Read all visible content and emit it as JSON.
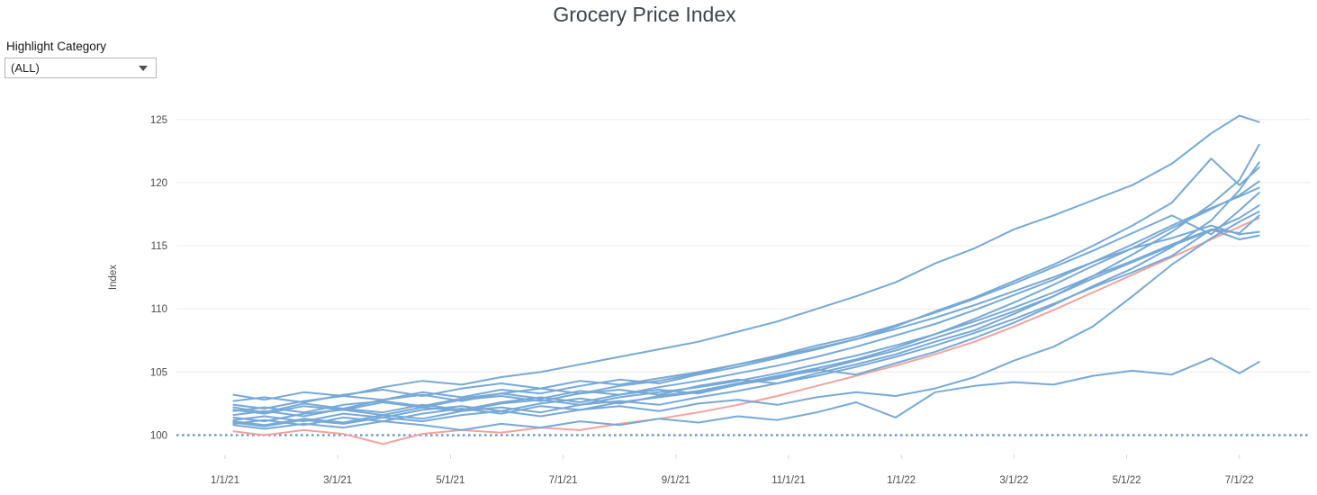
{
  "controls": {
    "label": "Highlight Category",
    "value": "(ALL)"
  },
  "chart_data": {
    "type": "line",
    "title": "Grocery Price Index",
    "xlabel": "",
    "ylabel": "Index",
    "grid": "horizontal",
    "legend": "none",
    "ylim": [
      99,
      126.5
    ],
    "y_ticks": [
      100,
      105,
      110,
      115,
      120,
      125
    ],
    "x_ticks": [
      {
        "label": "1/1/21",
        "month": 0
      },
      {
        "label": "3/1/21",
        "month": 2
      },
      {
        "label": "5/1/21",
        "month": 4
      },
      {
        "label": "7/1/21",
        "month": 6
      },
      {
        "label": "9/1/21",
        "month": 8
      },
      {
        "label": "11/1/21",
        "month": 10
      },
      {
        "label": "1/1/22",
        "month": 12
      },
      {
        "label": "3/1/22",
        "month": 14
      },
      {
        "label": "5/1/22",
        "month": 16
      },
      {
        "label": "7/1/22",
        "month": 18
      }
    ],
    "reference_line": {
      "value": 100,
      "style": "dotted",
      "color": "#6C9BD2"
    },
    "line_color": "#76A9D6",
    "highlight_color": "#F2A29B",
    "x_unit": "months since 1/1/21, weekly data",
    "x": [
      0.15,
      0.7,
      1.4,
      2.1,
      2.8,
      3.5,
      4.2,
      4.9,
      5.6,
      6.3,
      7.0,
      7.7,
      8.4,
      9.1,
      9.8,
      10.5,
      11.2,
      11.9,
      12.6,
      13.3,
      14.0,
      14.7,
      15.4,
      16.1,
      16.8,
      17.5,
      18.0,
      18.35
    ],
    "series": [
      {
        "name": "series-01",
        "color": "#F2A29B",
        "values": [
          100.3,
          100.0,
          100.4,
          100.1,
          99.3,
          100.1,
          100.4,
          100.2,
          100.6,
          100.4,
          100.9,
          101.3,
          101.8,
          102.4,
          103.1,
          103.9,
          104.7,
          105.5,
          106.4,
          107.4,
          108.6,
          109.9,
          111.3,
          112.7,
          114.1,
          115.5,
          116.5,
          117.2
        ]
      },
      {
        "name": "series-02",
        "color": "#76A9D6",
        "values": [
          100.8,
          100.5,
          100.9,
          100.6,
          101.1,
          100.8,
          100.4,
          100.9,
          100.6,
          101.1,
          100.8,
          101.3,
          101.0,
          101.5,
          101.2,
          101.8,
          102.6,
          101.4,
          103.4,
          103.9,
          104.2,
          104.0,
          104.7,
          105.1,
          104.8,
          106.1,
          104.9,
          105.8
        ]
      },
      {
        "name": "series-03",
        "color": "#76A9D6",
        "values": [
          101.0,
          100.7,
          101.2,
          100.9,
          101.4,
          101.1,
          101.6,
          101.9,
          101.5,
          102.0,
          102.3,
          101.9,
          102.5,
          102.8,
          102.4,
          103.0,
          103.4,
          103.1,
          103.7,
          104.6,
          105.9,
          107.0,
          108.6,
          111.0,
          113.5,
          115.6,
          116.9,
          117.7
        ]
      },
      {
        "name": "series-04",
        "color": "#76A9D6",
        "values": [
          101.1,
          100.8,
          101.3,
          101.0,
          101.6,
          101.3,
          101.9,
          102.2,
          101.8,
          102.4,
          102.7,
          102.4,
          103.0,
          103.5,
          104.1,
          104.7,
          105.4,
          106.2,
          107.1,
          108.1,
          109.2,
          110.4,
          111.7,
          112.9,
          114.2,
          116.3,
          115.5,
          115.8
        ]
      },
      {
        "name": "series-05",
        "color": "#76A9D6",
        "values": [
          102.7,
          103.0,
          102.6,
          103.2,
          103.6,
          103.1,
          103.7,
          104.1,
          103.7,
          104.3,
          104.0,
          104.5,
          105.0,
          105.6,
          106.2,
          106.9,
          107.6,
          108.4,
          109.3,
          110.3,
          111.4,
          112.5,
          113.7,
          114.8,
          115.6,
          116.6,
          115.9,
          116.1
        ]
      },
      {
        "name": "series-06",
        "color": "#76A9D6",
        "values": [
          101.4,
          101.1,
          101.7,
          102.0,
          101.6,
          102.2,
          101.9,
          102.5,
          102.8,
          102.4,
          103.0,
          103.4,
          103.8,
          104.3,
          104.9,
          105.6,
          106.3,
          107.1,
          108.0,
          109.0,
          110.1,
          111.3,
          112.6,
          113.8,
          115.1,
          116.3,
          116.0,
          117.4
        ]
      },
      {
        "name": "series-07",
        "color": "#76A9D6",
        "values": [
          100.9,
          101.2,
          100.8,
          101.4,
          101.1,
          101.7,
          102.1,
          101.7,
          102.3,
          102.0,
          102.6,
          103.0,
          103.4,
          104.0,
          104.6,
          105.1,
          105.9,
          106.7,
          107.7,
          108.7,
          109.8,
          111.0,
          112.4,
          113.7,
          115.0,
          116.2,
          117.2,
          118.2
        ]
      },
      {
        "name": "series-08",
        "color": "#76A9D6",
        "values": [
          102.2,
          101.8,
          102.5,
          102.1,
          102.8,
          103.2,
          102.7,
          103.3,
          103.7,
          103.3,
          103.9,
          104.3,
          104.9,
          105.6,
          106.3,
          107.1,
          107.8,
          108.7,
          109.7,
          110.8,
          112.0,
          113.3,
          114.6,
          116.0,
          117.4,
          115.9,
          117.8,
          119.2
        ]
      },
      {
        "name": "series-09",
        "color": "#76A9D6",
        "values": [
          101.9,
          102.2,
          101.8,
          102.4,
          102.7,
          102.3,
          102.9,
          103.3,
          102.9,
          103.5,
          103.2,
          103.8,
          104.3,
          104.9,
          105.5,
          106.2,
          107.0,
          107.9,
          108.8,
          109.9,
          111.1,
          112.3,
          113.7,
          115.1,
          116.6,
          118.0,
          118.9,
          119.6
        ]
      },
      {
        "name": "series-10",
        "color": "#76A9D6",
        "values": [
          101.2,
          101.5,
          101.1,
          101.7,
          101.4,
          102.0,
          102.3,
          101.9,
          102.5,
          102.9,
          102.5,
          103.1,
          103.5,
          104.1,
          104.7,
          105.3,
          106.0,
          106.9,
          108.0,
          109.2,
          110.5,
          111.9,
          113.4,
          114.8,
          116.4,
          117.9,
          119.0,
          120.1
        ]
      },
      {
        "name": "series-11",
        "color": "#76A9D6",
        "values": [
          102.4,
          102.1,
          102.7,
          103.1,
          102.8,
          103.4,
          103.0,
          103.6,
          103.3,
          103.9,
          104.4,
          104.1,
          104.8,
          105.4,
          106.1,
          106.8,
          107.6,
          108.6,
          109.8,
          110.9,
          112.2,
          113.5,
          115.0,
          116.6,
          118.4,
          121.9,
          119.8,
          121.2
        ]
      },
      {
        "name": "series-12",
        "color": "#76A9D6",
        "values": [
          101.6,
          101.9,
          101.5,
          102.1,
          101.8,
          102.4,
          102.0,
          102.6,
          103.0,
          102.6,
          103.2,
          103.6,
          103.3,
          104.0,
          104.5,
          105.2,
          104.8,
          105.7,
          106.6,
          107.7,
          108.9,
          110.3,
          111.8,
          113.2,
          114.9,
          117.0,
          119.4,
          121.6
        ]
      },
      {
        "name": "series-13",
        "color": "#76A9D6",
        "values": [
          102.0,
          101.7,
          102.3,
          102.0,
          102.6,
          102.2,
          102.8,
          103.1,
          102.7,
          103.3,
          103.6,
          103.2,
          103.9,
          104.4,
          104.1,
          104.9,
          105.6,
          106.4,
          107.4,
          108.3,
          109.6,
          111.0,
          112.6,
          114.3,
          116.1,
          118.3,
          120.2,
          123.0
        ]
      },
      {
        "name": "series-14",
        "color": "#76A9D6",
        "values": [
          103.2,
          102.8,
          103.4,
          103.1,
          103.8,
          104.3,
          104.0,
          104.6,
          105.0,
          105.6,
          106.2,
          106.8,
          107.4,
          108.2,
          109.0,
          110.0,
          111.0,
          112.1,
          113.6,
          114.8,
          116.3,
          117.4,
          118.6,
          119.8,
          121.5,
          123.9,
          125.3,
          124.8
        ]
      }
    ]
  }
}
